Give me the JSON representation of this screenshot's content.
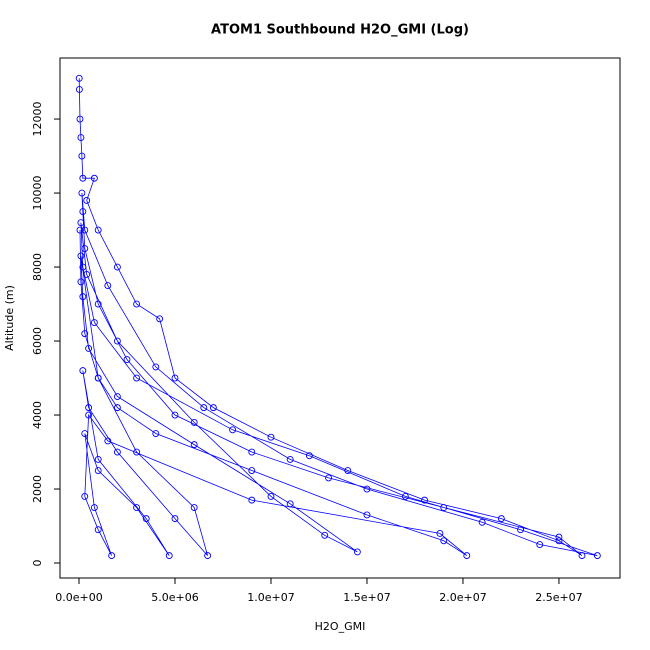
{
  "chart_data": {
    "type": "line",
    "title": "ATOM1 Southbound H2O_GMI (Log)",
    "x_label": "H2O_GMI",
    "y_label": "Altitude (m)",
    "xlim": [
      -990000,
      28180000
    ],
    "ylim": [
      -405,
      13650
    ],
    "xticks": [
      {
        "value": 0,
        "label": "0.0e+00"
      },
      {
        "value": 5000000,
        "label": "5.0e+06"
      },
      {
        "value": 10000000,
        "label": "1.0e+07"
      },
      {
        "value": 15000000,
        "label": "1.5e+07"
      },
      {
        "value": 20000000,
        "label": "2.0e+07"
      },
      {
        "value": 25000000,
        "label": "2.5e+07"
      }
    ],
    "yticks": [
      0,
      2000,
      4000,
      6000,
      8000,
      10000,
      12000
    ],
    "series": [
      {
        "color": "#0000ff",
        "x": [
          10000.0,
          20000.0,
          50000.0,
          100000.0,
          150000.0,
          200000.0,
          800000.0,
          400000.0,
          1000000.0,
          2000000.0,
          3000000.0,
          4200000.0,
          5000000.0,
          7000000.0,
          10000000.0,
          14000000.0,
          18000000.0,
          22000000.0,
          25000000.0,
          26200000.0,
          25000000.0,
          19000000.0,
          13000000.0,
          9000000.0,
          5000000.0,
          2500000.0,
          1000000.0,
          300000.0,
          200000.0,
          150000.0,
          300000.0,
          1500000.0,
          4000000.0,
          6500000.0,
          11000000.0,
          15000000.0,
          21000000.0,
          24000000.0,
          27000000.0,
          23000000.0,
          17000000.0,
          12000000.0,
          8000000.0,
          3000000.0,
          800000.0,
          200000.0,
          100000.0,
          400000.0,
          2000000.0,
          6000000.0,
          10000000.0,
          12800000.0,
          14500000.0,
          11000000.0,
          6000000.0,
          2000000.0,
          500000.0,
          200000.0,
          100000.0,
          1000000.0,
          3000000.0,
          6000000.0,
          6700000.0,
          5000000.0,
          2000000.0,
          500000.0,
          200000.0,
          1000000.0,
          3500000.0,
          4700000.0,
          3000000.0,
          1000000.0,
          300000.0,
          800000.0,
          1700000.0,
          1000000.0,
          300000.0,
          500000.0,
          1500000.0,
          9000000.0,
          18800000.0,
          20200000.0,
          19000000.0,
          15000000.0,
          9000000.0,
          4000000.0,
          2000000.0,
          1000000.0,
          300000.0,
          100000.0,
          50000.0
        ],
        "values": [
          13100,
          12800,
          12000,
          11500,
          11000,
          10400,
          10400,
          9800,
          9000,
          8000,
          7000,
          6600,
          5000,
          4200,
          3400,
          2500,
          1700,
          1200,
          600,
          200,
          700,
          1500,
          2300,
          3000,
          4000,
          5500,
          7000,
          8500,
          9500,
          10000,
          9000,
          7500,
          5300,
          4200,
          2800,
          2000,
          1100,
          500,
          200,
          900,
          1800,
          2900,
          3600,
          5000,
          6500,
          8000,
          9200,
          7800,
          6000,
          3800,
          1800,
          750,
          300,
          1600,
          3200,
          4500,
          5800,
          7200,
          8300,
          5000,
          3000,
          1500,
          200,
          1200,
          3000,
          4200,
          5200,
          2800,
          1200,
          200,
          1500,
          2500,
          3500,
          1500,
          200,
          900,
          1800,
          4000,
          3300,
          1700,
          800,
          200,
          600,
          1300,
          2500,
          3500,
          4200,
          5000,
          6200,
          7600,
          9000
        ]
      }
    ]
  }
}
